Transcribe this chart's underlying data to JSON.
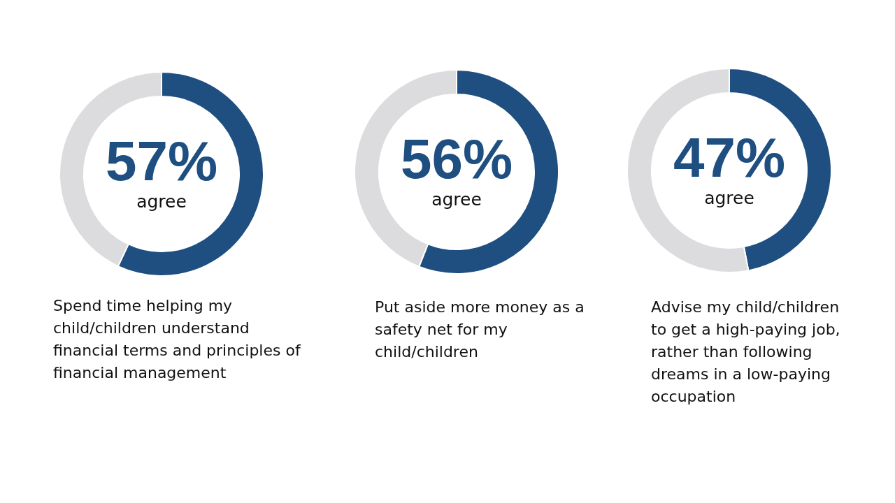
{
  "chart_data": [
    {
      "type": "donut",
      "title": "Spend time helping my child/children understand financial terms and principles of financial management",
      "categories": [
        "agree",
        null
      ],
      "values": [
        57,
        43
      ],
      "colors": [
        "#1e4f80",
        "#dcdbde"
      ],
      "value_labels": [
        "57%",
        null
      ]
    },
    {
      "type": "donut",
      "title": "Put aside more money as a safety net for my child/children",
      "categories": [
        "agree",
        null
      ],
      "values": [
        56,
        44
      ],
      "colors": [
        "#1e4f80",
        "#dcdbde"
      ],
      "value_labels": [
        "56%",
        null
      ]
    },
    {
      "type": "donut",
      "title": "Advise my child/children to get a high-paying job, rather than following dreams in a low-paying occupation",
      "categories": [
        "agree",
        null
      ],
      "values": [
        47,
        53
      ],
      "colors": [
        "#1e4f80",
        "#dcdbde"
      ],
      "value_labels": [
        "47%",
        null
      ]
    }
  ]
}
